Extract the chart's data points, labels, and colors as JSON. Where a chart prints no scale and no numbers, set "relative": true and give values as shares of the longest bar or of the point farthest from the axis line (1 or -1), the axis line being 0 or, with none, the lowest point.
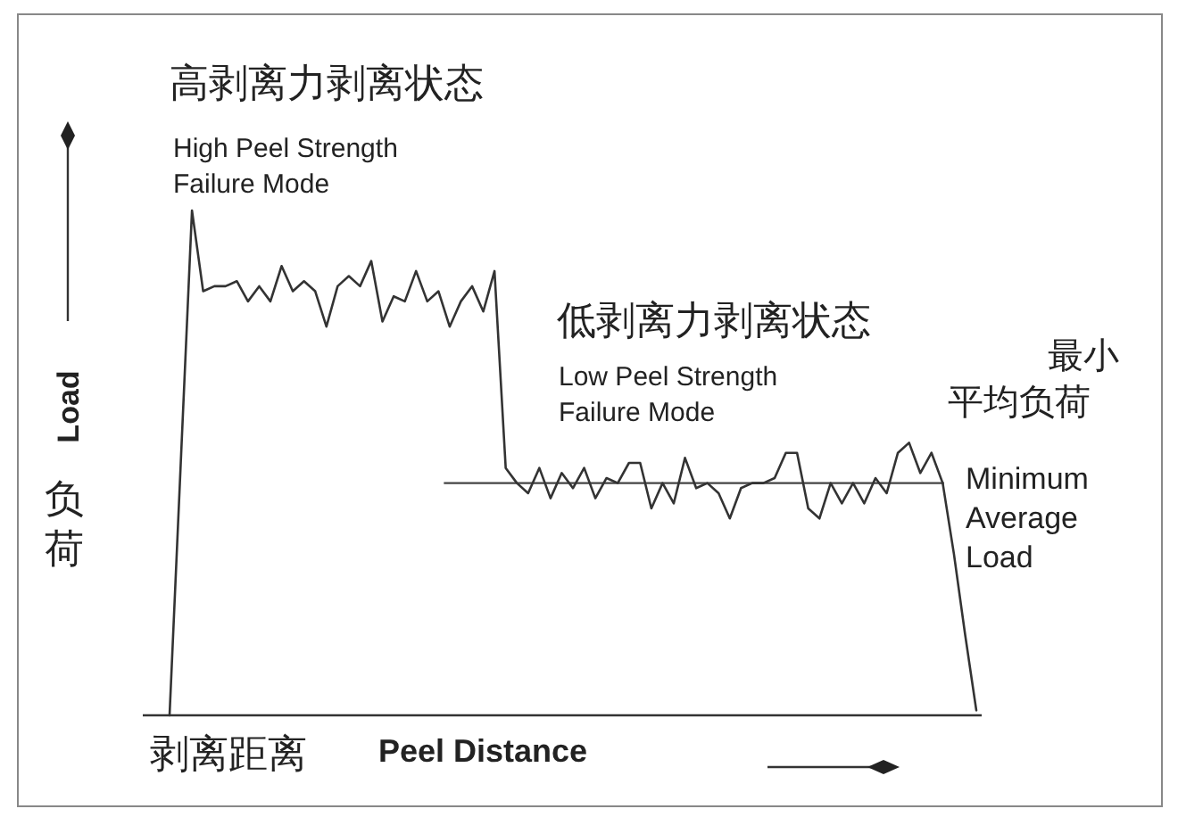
{
  "chart_data": {
    "type": "line",
    "relative": true,
    "categories": [
      null,
      null,
      null,
      null,
      null,
      null,
      null,
      null,
      null,
      null,
      null,
      null,
      null,
      null,
      null,
      null,
      null,
      null,
      null,
      null,
      null,
      null,
      null,
      null,
      null,
      null,
      null,
      null,
      null,
      null,
      null,
      null,
      null,
      null,
      null,
      null,
      null,
      null,
      null,
      null,
      null,
      null,
      null,
      null,
      null,
      null,
      null,
      null,
      null,
      null,
      null,
      null,
      null,
      null,
      null,
      null,
      null,
      null,
      null,
      null,
      null,
      null,
      null,
      null,
      null,
      null,
      null,
      null,
      null,
      null,
      null,
      null,
      null
    ],
    "values": [
      0,
      0.5,
      1,
      0.84,
      0.85,
      0.85,
      0.86,
      0.82,
      0.85,
      0.82,
      0.89,
      0.84,
      0.86,
      0.84,
      0.77,
      0.85,
      0.87,
      0.85,
      0.9,
      0.78,
      0.83,
      0.82,
      0.88,
      0.82,
      0.84,
      0.77,
      0.82,
      0.85,
      0.8,
      0.88,
      0.49,
      0.46,
      0.44,
      0.49,
      0.43,
      0.48,
      0.45,
      0.49,
      0.43,
      0.47,
      0.46,
      0.5,
      0.5,
      0.41,
      0.46,
      0.42,
      0.51,
      0.45,
      0.46,
      0.44,
      0.39,
      0.45,
      0.46,
      0.46,
      0.47,
      0.52,
      0.52,
      0.41,
      0.39,
      0.46,
      0.42,
      0.46,
      0.42,
      0.47,
      0.44,
      0.52,
      0.54,
      0.48,
      0.52,
      0.46,
      0.32,
      0.16,
      0.01
    ],
    "color": "#333333",
    "xlabel": "Peel Distance",
    "ylabel": "Load",
    "ref_lines": [
      {
        "axis": "y",
        "value": 0.46,
        "label": "Minimum Average Load",
        "color": "#444444"
      }
    ],
    "annotations": [
      "高剥离力剥离状态",
      "High Peel Strength Failure Mode",
      "低剥离力剥离状态",
      "Low Peel Strength Failure Mode",
      "负荷",
      "剥离距离",
      "最小平均负荷"
    ]
  }
}
